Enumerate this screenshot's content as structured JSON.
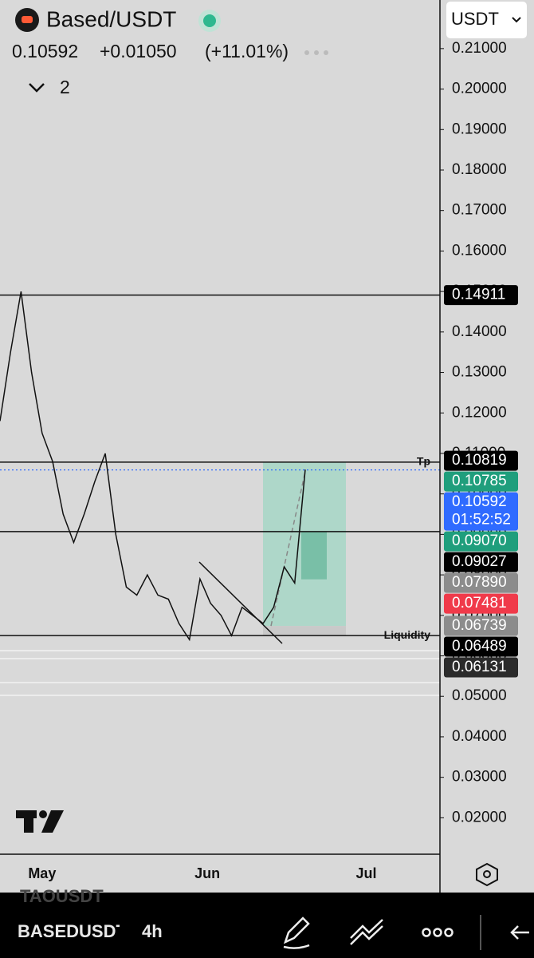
{
  "header": {
    "symbol": "Based/USDT",
    "price": "0.10592",
    "change": "+0.01050",
    "change_pct": "(+11.01%)",
    "indicators": "2",
    "currency": "USDT"
  },
  "chart_data": {
    "type": "line",
    "name": "Based/USDT",
    "color": "#111111",
    "values": [
      0.118,
      0.135,
      0.15,
      0.13,
      0.115,
      0.108,
      0.095,
      0.088,
      0.095,
      0.103,
      0.11,
      0.09,
      0.077,
      0.075,
      0.08,
      0.075,
      0.074,
      0.068,
      0.064,
      0.079,
      0.073,
      0.07,
      0.065,
      0.072,
      0.07,
      0.068,
      0.072,
      0.082,
      0.078,
      0.106
    ],
    "xlim": [
      0,
      41.8
    ],
    "xticks": [
      {
        "value": 4,
        "label": "May"
      },
      {
        "value": 19.7,
        "label": "Jun"
      },
      {
        "value": 34.8,
        "label": "Jul"
      }
    ],
    "ylim": [
      0.011,
      0.222
    ],
    "yticks": [
      {
        "value": 0.02,
        "label": "0.02000"
      },
      {
        "value": 0.03,
        "label": "0.03000"
      },
      {
        "value": 0.04,
        "label": "0.04000"
      },
      {
        "value": 0.05,
        "label": "0.05000"
      },
      {
        "value": 0.06,
        "label": "0.06000"
      },
      {
        "value": 0.07,
        "label": "0.07000"
      },
      {
        "value": 0.08,
        "label": "0.08000"
      },
      {
        "value": 0.09,
        "label": "0.09000"
      },
      {
        "value": 0.1,
        "label": "0.10000"
      },
      {
        "value": 0.11,
        "label": "0.11000"
      },
      {
        "value": 0.12,
        "label": "0.12000"
      },
      {
        "value": 0.13,
        "label": "0.13000"
      },
      {
        "value": 0.14,
        "label": "0.14000"
      },
      {
        "value": 0.15,
        "label": "0.15000"
      },
      {
        "value": 0.16,
        "label": "0.16000"
      },
      {
        "value": 0.17,
        "label": "0.17000"
      },
      {
        "value": 0.18,
        "label": "0.18000"
      },
      {
        "value": 0.19,
        "label": "0.19000"
      },
      {
        "value": 0.2,
        "label": "0.20000"
      },
      {
        "value": 0.21,
        "label": "0.21000"
      }
    ],
    "levels": [
      {
        "value": 0.14911
      },
      {
        "value": 0.10785,
        "label": "Tp"
      },
      {
        "value": 0.0907
      },
      {
        "value": 0.065,
        "label": "Liquidity"
      }
    ],
    "price_tags": [
      {
        "value": 0.14911,
        "label": "0.14911",
        "color": "#000000"
      },
      {
        "value": 0.10819,
        "label": "0.10819",
        "color": "#000000"
      },
      {
        "value": 0.10785,
        "label": "0.10785",
        "color": "#1f9e7c"
      },
      {
        "value": 0.10592,
        "label": "0.10592",
        "color": "#2f6bff",
        "countdown": "01:52:52"
      },
      {
        "value": 0.0907,
        "label": "0.09070",
        "color": "#1f9e7c"
      },
      {
        "value": 0.09027,
        "label": "0.09027",
        "color": "#000000"
      },
      {
        "value": 0.0789,
        "label": "0.07890",
        "color": "#8c8c8c"
      },
      {
        "value": 0.07481,
        "label": "0.07481",
        "color": "#f03a4a"
      },
      {
        "value": 0.06739,
        "label": "0.06739",
        "color": "#8c8c8c"
      },
      {
        "value": 0.06489,
        "label": "0.06489",
        "color": "#000000"
      },
      {
        "value": 0.06131,
        "label": "0.06131",
        "color": "#2b2b2b"
      }
    ]
  },
  "toolbar": {
    "symbol": "BASEDUSDT",
    "interval": "4h",
    "previous_symbol": "TAOUSDT"
  }
}
